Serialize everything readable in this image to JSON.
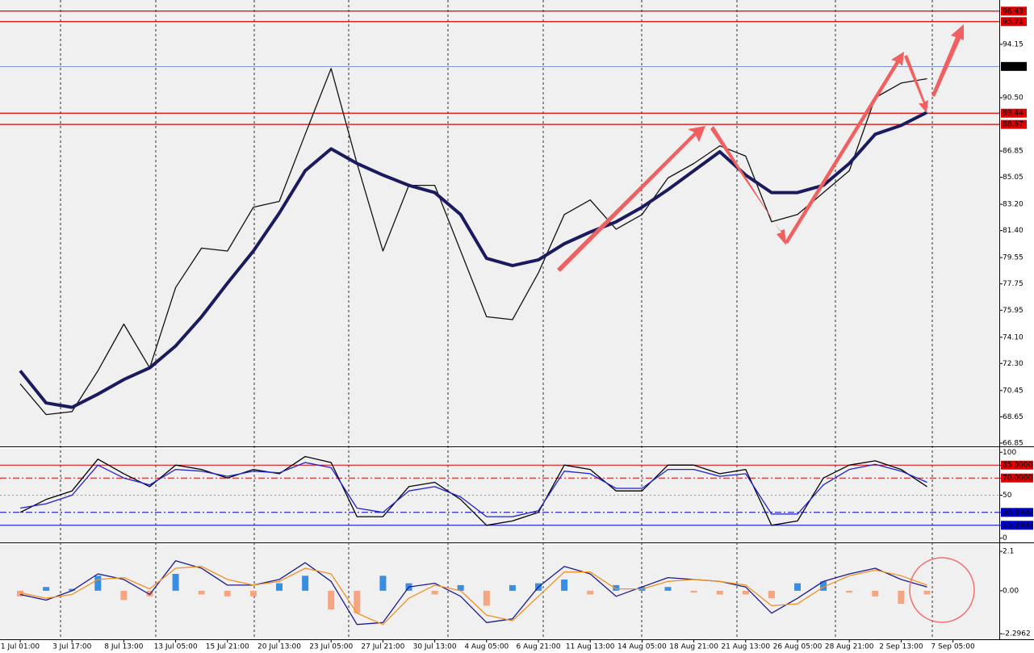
{
  "chart_data": [
    {
      "type": "line",
      "ylim": [
        66.68,
        97.19
      ],
      "yticks": [
        94.15,
        {
          "value": 90.5,
          "label": "90.50"
        },
        86.85,
        85.05,
        {
          "value": 83.2,
          "label": "83.20"
        },
        {
          "value": 81.4,
          "label": "81.40"
        },
        79.55,
        77.75,
        75.95,
        {
          "value": 74.1,
          "label": "74.10"
        },
        {
          "value": 72.3,
          "label": "72.30"
        },
        70.45,
        68.65,
        66.85
      ],
      "levels": [
        96.43,
        95.71,
        92.64,
        89.44,
        88.67
      ],
      "level_colors": [
        "#e00000",
        "#e00000",
        "#000000",
        "#e00000",
        "#e00000"
      ],
      "series": [
        {
          "color": "#111111",
          "values": [
            70.9,
            68.8,
            69.0,
            71.8,
            75.0,
            72.0,
            77.5,
            80.2,
            80.0,
            83.0,
            83.4,
            88.0,
            92.5,
            86.0,
            80.0,
            84.5,
            84.5,
            80.0,
            75.5,
            75.3,
            78.5,
            82.5,
            83.5,
            81.5,
            82.5,
            85.0,
            86.0,
            87.2,
            86.5,
            82.0,
            82.5,
            84.0,
            85.5,
            90.5,
            91.5,
            91.8,
            null
          ]
        },
        {
          "color": "#1a1a5e",
          "values": [
            71.8,
            69.6,
            69.3,
            70.2,
            71.2,
            72.0,
            73.5,
            75.5,
            77.8,
            80.0,
            82.6,
            85.5,
            87.0,
            86.0,
            85.2,
            84.5,
            84.0,
            82.5,
            79.5,
            79.0,
            79.4,
            80.5,
            81.3,
            82.0,
            83.0,
            84.2,
            85.5,
            86.8,
            85.2,
            84.0,
            84.0,
            84.5,
            86.0,
            88.0,
            88.6,
            89.5,
            null
          ]
        }
      ]
    },
    {
      "type": "line",
      "ylim": [
        -4,
        104
      ],
      "yticks": [
        100,
        {
          "value": 85,
          "label": "85.0000"
        },
        {
          "value": 70,
          "label": "70.0000"
        },
        50,
        {
          "value": 30,
          "label": "30.0000"
        },
        {
          "value": 15,
          "label": "15.0000"
        },
        0
      ],
      "tick_colors": [
        "#000000",
        "#e00000",
        "#e00000",
        "#999999",
        "#0000cc",
        "#0000cc",
        "#000000"
      ],
      "series": [
        {
          "color": "#000000",
          "values": [
            30,
            45,
            55,
            92,
            75,
            60,
            85,
            80,
            70,
            80,
            75,
            95,
            88,
            25,
            25,
            60,
            65,
            45,
            15,
            20,
            30,
            85,
            80,
            55,
            55,
            85,
            85,
            75,
            80,
            15,
            20,
            70,
            85,
            90,
            80,
            60,
            null
          ]
        },
        {
          "color": "#2020d0",
          "values": [
            35,
            40,
            50,
            85,
            70,
            62,
            80,
            78,
            72,
            78,
            76,
            88,
            82,
            35,
            30,
            55,
            60,
            48,
            25,
            25,
            32,
            78,
            75,
            58,
            58,
            80,
            80,
            72,
            75,
            28,
            28,
            62,
            80,
            86,
            78,
            65,
            null
          ]
        }
      ]
    },
    {
      "type": "bar",
      "ylim": [
        -2.59,
        2.45
      ],
      "yticks": [
        2.1,
        {
          "value": 0,
          "label": "0.00"
        },
        -2.2962
      ],
      "categories": [
        "1 Jul 01:00",
        null,
        "3 Jul 17:00",
        null,
        "8 Jul 13:00",
        null,
        "13 Jul 05:00",
        null,
        "15 Jul 21:00",
        null,
        "20 Jul 13:00",
        null,
        "23 Jul 05:00",
        null,
        "27 Jul 21:00",
        null,
        "30 Jul 13:00",
        null,
        "4 Aug 05:00",
        null,
        "6 Aug 21:00",
        null,
        "11 Aug 13:00",
        null,
        "14 Aug 05:00",
        null,
        "18 Aug 21:00",
        null,
        "21 Aug 13:00",
        null,
        "26 Aug 05:00",
        null,
        "28 Aug 21:00",
        null,
        "2 Sep 13:00",
        null,
        "7 Sep 05:00"
      ],
      "values": [
        -0.3,
        0.2,
        0.1,
        0.8,
        -0.5,
        -0.3,
        0.9,
        -0.2,
        -0.3,
        -0.3,
        0.4,
        0.8,
        -1.0,
        -1.2,
        0.8,
        0.4,
        -0.2,
        0.3,
        -0.8,
        0.3,
        0.4,
        0.6,
        -0.2,
        0.3,
        0.2,
        0.2,
        -0.1,
        -0.2,
        -0.2,
        -0.4,
        0.4,
        0.5,
        -0.1,
        -0.3,
        -0.7,
        -0.2,
        null
      ],
      "bar_colors": [
        "#3a8ee0",
        "#f4a582"
      ],
      "series": [
        {
          "color": "#1a1a8e",
          "values": [
            -0.2,
            -0.5,
            0.0,
            0.9,
            0.6,
            -0.2,
            1.6,
            1.2,
            0.3,
            0.3,
            0.6,
            1.5,
            0.5,
            -1.8,
            -1.7,
            0.2,
            0.4,
            -0.3,
            -1.7,
            -1.5,
            0.2,
            1.3,
            0.9,
            -0.3,
            0.2,
            0.7,
            0.6,
            0.5,
            0.2,
            -1.2,
            -0.4,
            0.5,
            0.9,
            1.2,
            0.6,
            0.2,
            null
          ]
        },
        {
          "color": "#f09020",
          "values": [
            -0.1,
            -0.4,
            -0.2,
            0.6,
            0.7,
            0.1,
            1.2,
            1.3,
            0.6,
            0.3,
            0.5,
            1.2,
            0.9,
            -1.2,
            -1.8,
            -0.4,
            0.3,
            0.0,
            -1.3,
            -1.6,
            -0.3,
            1.0,
            1.0,
            0.1,
            0.1,
            0.5,
            0.6,
            0.5,
            0.3,
            -0.8,
            -0.7,
            0.2,
            0.8,
            1.1,
            0.8,
            0.3,
            null
          ]
        }
      ]
    }
  ]
}
